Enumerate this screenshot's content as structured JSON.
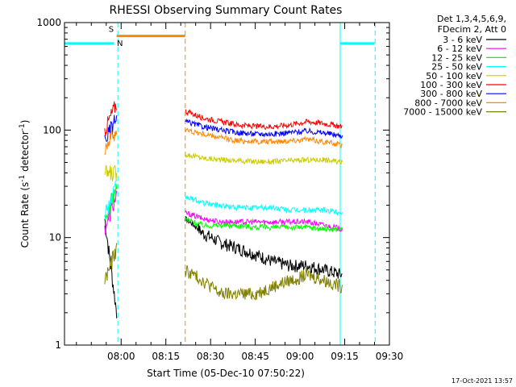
{
  "chart_data": {
    "type": "line",
    "title": "RHESSI Observing Summary Count Rates",
    "xlabel": "Start Time (05-Dec-10 07:50:22)",
    "ylabel_main": "Count Rate (s",
    "ylabel_sup1": "-1",
    "ylabel_mid": " detector",
    "ylabel_sup2": "-1",
    "ylabel_end": ")",
    "x_range_min": [
      -9,
      100
    ],
    "y_range": [
      1,
      1000
    ],
    "y_scale": "log",
    "xticks": [
      {
        "min": 10,
        "label": "08:00"
      },
      {
        "min": 25,
        "label": "08:15"
      },
      {
        "min": 40,
        "label": "08:30"
      },
      {
        "min": 55,
        "label": "08:45"
      },
      {
        "min": 70,
        "label": "09:00"
      },
      {
        "min": 85,
        "label": "09:15"
      },
      {
        "min": 100,
        "label": "09:30"
      }
    ],
    "yticks": [
      {
        "value": 1,
        "label": "1"
      },
      {
        "value": 10,
        "label": "10"
      },
      {
        "value": 100,
        "label": "100"
      },
      {
        "value": 1000,
        "label": "1000"
      }
    ],
    "legend_header": [
      "Det 1,3,4,5,6,9,",
      "FDecim 2, Att 0"
    ],
    "legend_position": "top-right",
    "series": [
      {
        "name": "3 - 6 keV",
        "color": "#000000",
        "seg1": {
          "start": 15,
          "end": 2,
          "dip": 9
        },
        "seg2": [
          15,
          11,
          9,
          8,
          7,
          6,
          5.5,
          5.5,
          5,
          4.5
        ]
      },
      {
        "name": "6 - 12 keV",
        "color": "#ff00ff",
        "seg1": {
          "start": 12,
          "end": 25,
          "dip": 12
        },
        "seg2": [
          17,
          15,
          14,
          14,
          14,
          14,
          14,
          14,
          13,
          12
        ]
      },
      {
        "name": "12 - 25 keV",
        "color": "#00ff00",
        "seg1": {
          "start": 14,
          "end": 30,
          "dip": 14
        },
        "seg2": [
          15,
          13,
          13,
          13,
          12.5,
          12.5,
          12.5,
          12.5,
          12,
          12
        ]
      },
      {
        "name": "25 - 50 keV",
        "color": "#00ffff",
        "seg1": {
          "start": 17,
          "end": 30,
          "dip": 17
        },
        "seg2": [
          24,
          21,
          20,
          19,
          19,
          19,
          18,
          18,
          18,
          17
        ]
      },
      {
        "name": "50 - 100 keV",
        "color": "#cccc00",
        "seg1": {
          "start": 40,
          "end": 40,
          "dip": 40
        },
        "seg2": [
          60,
          55,
          53,
          52,
          51,
          51,
          52,
          53,
          53,
          50
        ]
      },
      {
        "name": "100 - 300 keV",
        "color": "#ff0000",
        "seg1": {
          "start": 100,
          "end": 180,
          "dip": 100
        },
        "seg2": [
          150,
          130,
          120,
          112,
          108,
          108,
          112,
          120,
          115,
          108
        ]
      },
      {
        "name": "300 - 800 keV",
        "color": "#0000ff",
        "seg1": {
          "start": 80,
          "end": 130,
          "dip": 80
        },
        "seg2": [
          120,
          108,
          100,
          95,
          92,
          92,
          95,
          98,
          94,
          88
        ]
      },
      {
        "name": "800 - 7000 keV",
        "color": "#ff8800",
        "seg1": {
          "start": 70,
          "end": 100,
          "dip": 70
        },
        "seg2": [
          100,
          92,
          85,
          80,
          78,
          78,
          80,
          82,
          78,
          72
        ]
      },
      {
        "name": "7000 - 15000 keV",
        "color": "#808000",
        "seg1": {
          "start": 4,
          "end": 8,
          "dip": 4
        },
        "seg2": [
          5,
          4,
          3,
          3,
          3,
          3.5,
          4,
          4.5,
          4,
          3.5
        ]
      }
    ],
    "segments_min": [
      [
        4.5,
        8.5
      ],
      [
        31.5,
        84.2
      ]
    ],
    "orbit_bars": [
      {
        "label": "S",
        "color": "#ff8800",
        "x0": 8.5,
        "x1": 31.5,
        "y": 750
      },
      {
        "label": "N",
        "color": "#00ffff",
        "x0": -9,
        "x1": 7.5,
        "y": 640
      },
      {
        "label": "",
        "color": "#00ffff",
        "x0": 83.5,
        "x1": 95,
        "y": 640
      }
    ],
    "vlines": [
      {
        "min": -9,
        "color": "#00ffff",
        "style": "solid"
      },
      {
        "min": 8.9,
        "color": "#00ffff",
        "style": "dash"
      },
      {
        "min": 31.5,
        "color": "#ff8800",
        "style": "dash"
      },
      {
        "min": 83.5,
        "color": "#00ffff",
        "style": "solid"
      },
      {
        "min": 95.2,
        "color": "#00ffff",
        "style": "dash"
      }
    ]
  },
  "footer_date": "17-Oct-2021 13:57"
}
